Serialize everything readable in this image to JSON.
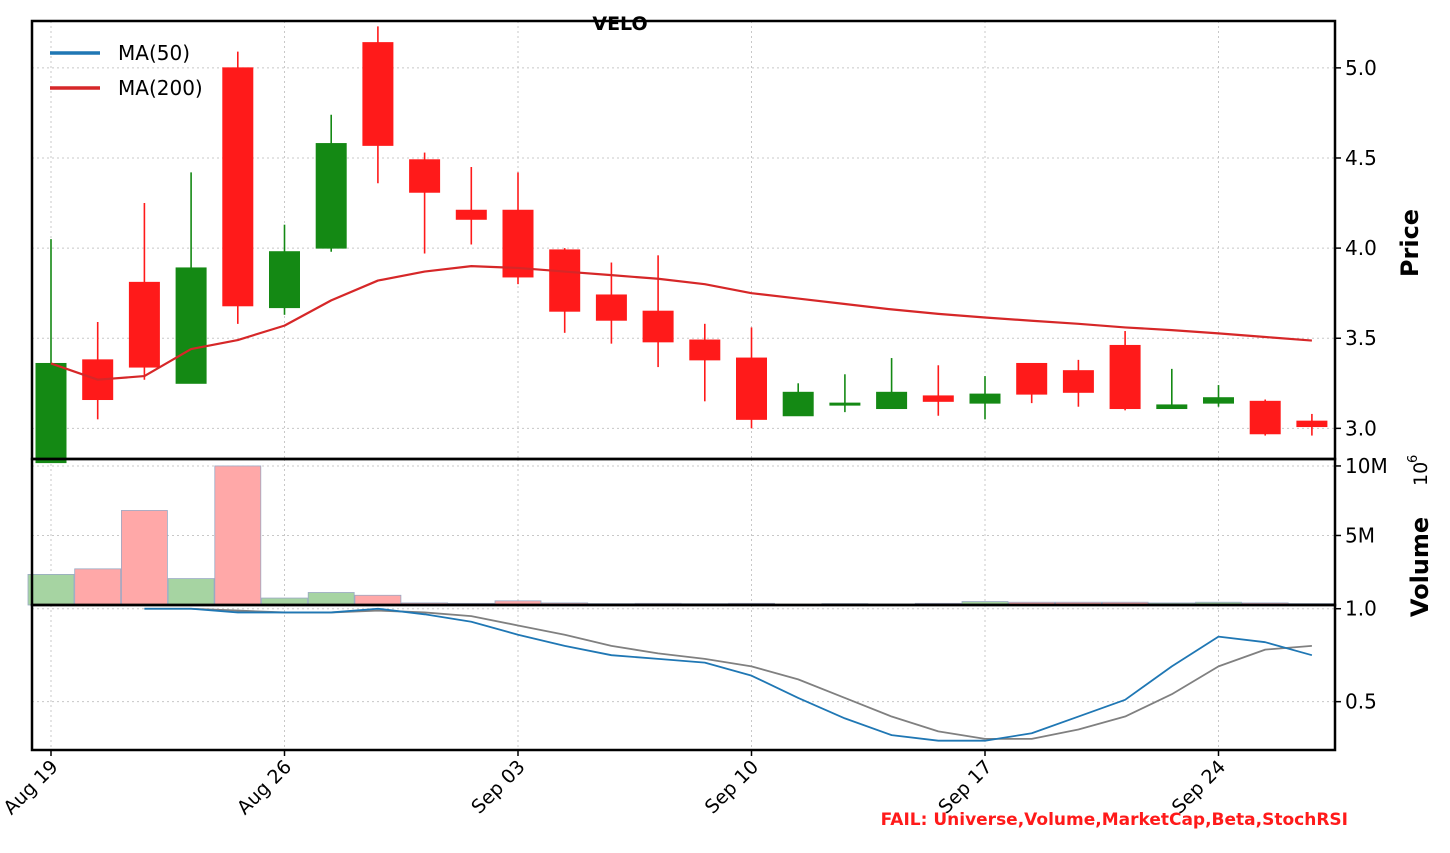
{
  "title": "VELO",
  "fail_message": "FAIL: Universe,Volume,MarketCap,Beta,StochRSI",
  "colors": {
    "up": "#148914",
    "down": "#ff1a1a",
    "vol_up": "#a6d4a2",
    "vol_down": "#ffa8a8",
    "ma50": "#1f77b4",
    "ma200": "#d62728",
    "stoch_k": "#1f77b4",
    "stoch_d": "#808080",
    "fail": "#ff1a1a"
  },
  "chart_data": {
    "type": "candlestick",
    "title": "VELO",
    "x_ticks": [
      "Aug 19",
      "Aug 26",
      "Sep 03",
      "Sep 10",
      "Sep 17",
      "Sep 24"
    ],
    "x_tick_index": [
      0,
      5,
      10,
      15,
      20,
      25
    ],
    "legend": {
      "placement": "top-left",
      "entries": [
        "MA(50)",
        "MA(200)"
      ]
    },
    "grid": true,
    "price": {
      "ylabel": "Price",
      "ylim": [
        2.83,
        5.26
      ],
      "yticks": [
        "3.0",
        "3.5",
        "4.0",
        "4.5",
        "5.0"
      ],
      "ytick_values": [
        3.0,
        3.5,
        4.0,
        4.5,
        5.0
      ],
      "candles": [
        {
          "o": 2.81,
          "h": 4.05,
          "l": 2.81,
          "c": 3.36
        },
        {
          "o": 3.38,
          "h": 3.59,
          "l": 3.05,
          "c": 3.16
        },
        {
          "o": 3.81,
          "h": 4.25,
          "l": 3.27,
          "c": 3.34
        },
        {
          "o": 3.25,
          "h": 4.42,
          "l": 3.25,
          "c": 3.89
        },
        {
          "o": 5.0,
          "h": 5.09,
          "l": 3.58,
          "c": 3.68
        },
        {
          "o": 3.67,
          "h": 4.13,
          "l": 3.63,
          "c": 3.98
        },
        {
          "o": 4.0,
          "h": 4.74,
          "l": 3.98,
          "c": 4.58
        },
        {
          "o": 5.14,
          "h": 5.23,
          "l": 4.36,
          "c": 4.57
        },
        {
          "o": 4.49,
          "h": 4.53,
          "l": 3.97,
          "c": 4.31
        },
        {
          "o": 4.21,
          "h": 4.45,
          "l": 4.02,
          "c": 4.16
        },
        {
          "o": 4.21,
          "h": 4.42,
          "l": 3.8,
          "c": 3.84
        },
        {
          "o": 3.99,
          "h": 4.0,
          "l": 3.53,
          "c": 3.65
        },
        {
          "o": 3.74,
          "h": 3.92,
          "l": 3.47,
          "c": 3.6
        },
        {
          "o": 3.65,
          "h": 3.96,
          "l": 3.34,
          "c": 3.48
        },
        {
          "o": 3.49,
          "h": 3.58,
          "l": 3.15,
          "c": 3.38
        },
        {
          "o": 3.39,
          "h": 3.56,
          "l": 3.0,
          "c": 3.05
        },
        {
          "o": 3.07,
          "h": 3.25,
          "l": 3.07,
          "c": 3.2
        },
        {
          "o": 3.14,
          "h": 3.3,
          "l": 3.09,
          "c": 3.14
        },
        {
          "o": 3.11,
          "h": 3.39,
          "l": 3.11,
          "c": 3.2
        },
        {
          "o": 3.18,
          "h": 3.35,
          "l": 3.07,
          "c": 3.15
        },
        {
          "o": 3.14,
          "h": 3.29,
          "l": 3.05,
          "c": 3.19
        },
        {
          "o": 3.36,
          "h": 3.36,
          "l": 3.14,
          "c": 3.19
        },
        {
          "o": 3.32,
          "h": 3.38,
          "l": 3.12,
          "c": 3.2
        },
        {
          "o": 3.46,
          "h": 3.54,
          "l": 3.1,
          "c": 3.11
        },
        {
          "o": 3.11,
          "h": 3.33,
          "l": 3.11,
          "c": 3.13
        },
        {
          "o": 3.14,
          "h": 3.24,
          "l": 3.12,
          "c": 3.17
        },
        {
          "o": 3.15,
          "h": 3.16,
          "l": 2.96,
          "c": 2.97
        },
        {
          "o": 3.04,
          "h": 3.08,
          "l": 2.96,
          "c": 3.01
        }
      ],
      "ma200": [
        3.36,
        3.27,
        3.29,
        3.44,
        3.49,
        3.57,
        3.71,
        3.82,
        3.87,
        3.9,
        3.89,
        3.87,
        3.85,
        3.83,
        3.8,
        3.75,
        3.72,
        3.69,
        3.66,
        3.635,
        3.615,
        3.597,
        3.58,
        3.56,
        3.545,
        3.527,
        3.507,
        3.487
      ],
      "ma50": []
    },
    "volume": {
      "ylabel": "Volume",
      "exponent_label": "10",
      "exponent": "6",
      "yticks": [
        "5M",
        "10M"
      ],
      "ytick_values": [
        5,
        10
      ],
      "ylim": [
        0,
        10.5
      ],
      "unit": "millions",
      "values": [
        2.2,
        2.6,
        6.8,
        1.9,
        10.0,
        0.5,
        0.9,
        0.7,
        0.15,
        0.12,
        0.3,
        0.15,
        0.1,
        0.12,
        0.1,
        0.12,
        0.05,
        0.1,
        0.08,
        0.12,
        0.25,
        0.2,
        0.2,
        0.2,
        0.15,
        0.2,
        0.15,
        0.1
      ]
    },
    "stochrsi": {
      "yticks": [
        "0.5",
        "1.0"
      ],
      "ytick_values": [
        0.5,
        1.0
      ],
      "ylim": [
        0.24,
        1.02
      ],
      "k": [
        null,
        null,
        1.0,
        1.0,
        0.98,
        0.98,
        0.98,
        1.0,
        0.97,
        0.93,
        0.86,
        0.8,
        0.75,
        0.73,
        0.71,
        0.64,
        0.52,
        0.41,
        0.32,
        0.29,
        0.29,
        0.33,
        0.42,
        0.51,
        0.69,
        0.85,
        0.82,
        0.75
      ],
      "d": [
        null,
        null,
        1.0,
        1.0,
        0.99,
        0.98,
        0.98,
        0.99,
        0.98,
        0.96,
        0.91,
        0.86,
        0.8,
        0.76,
        0.73,
        0.69,
        0.62,
        0.52,
        0.42,
        0.34,
        0.3,
        0.3,
        0.35,
        0.42,
        0.54,
        0.69,
        0.78,
        0.8
      ]
    }
  }
}
